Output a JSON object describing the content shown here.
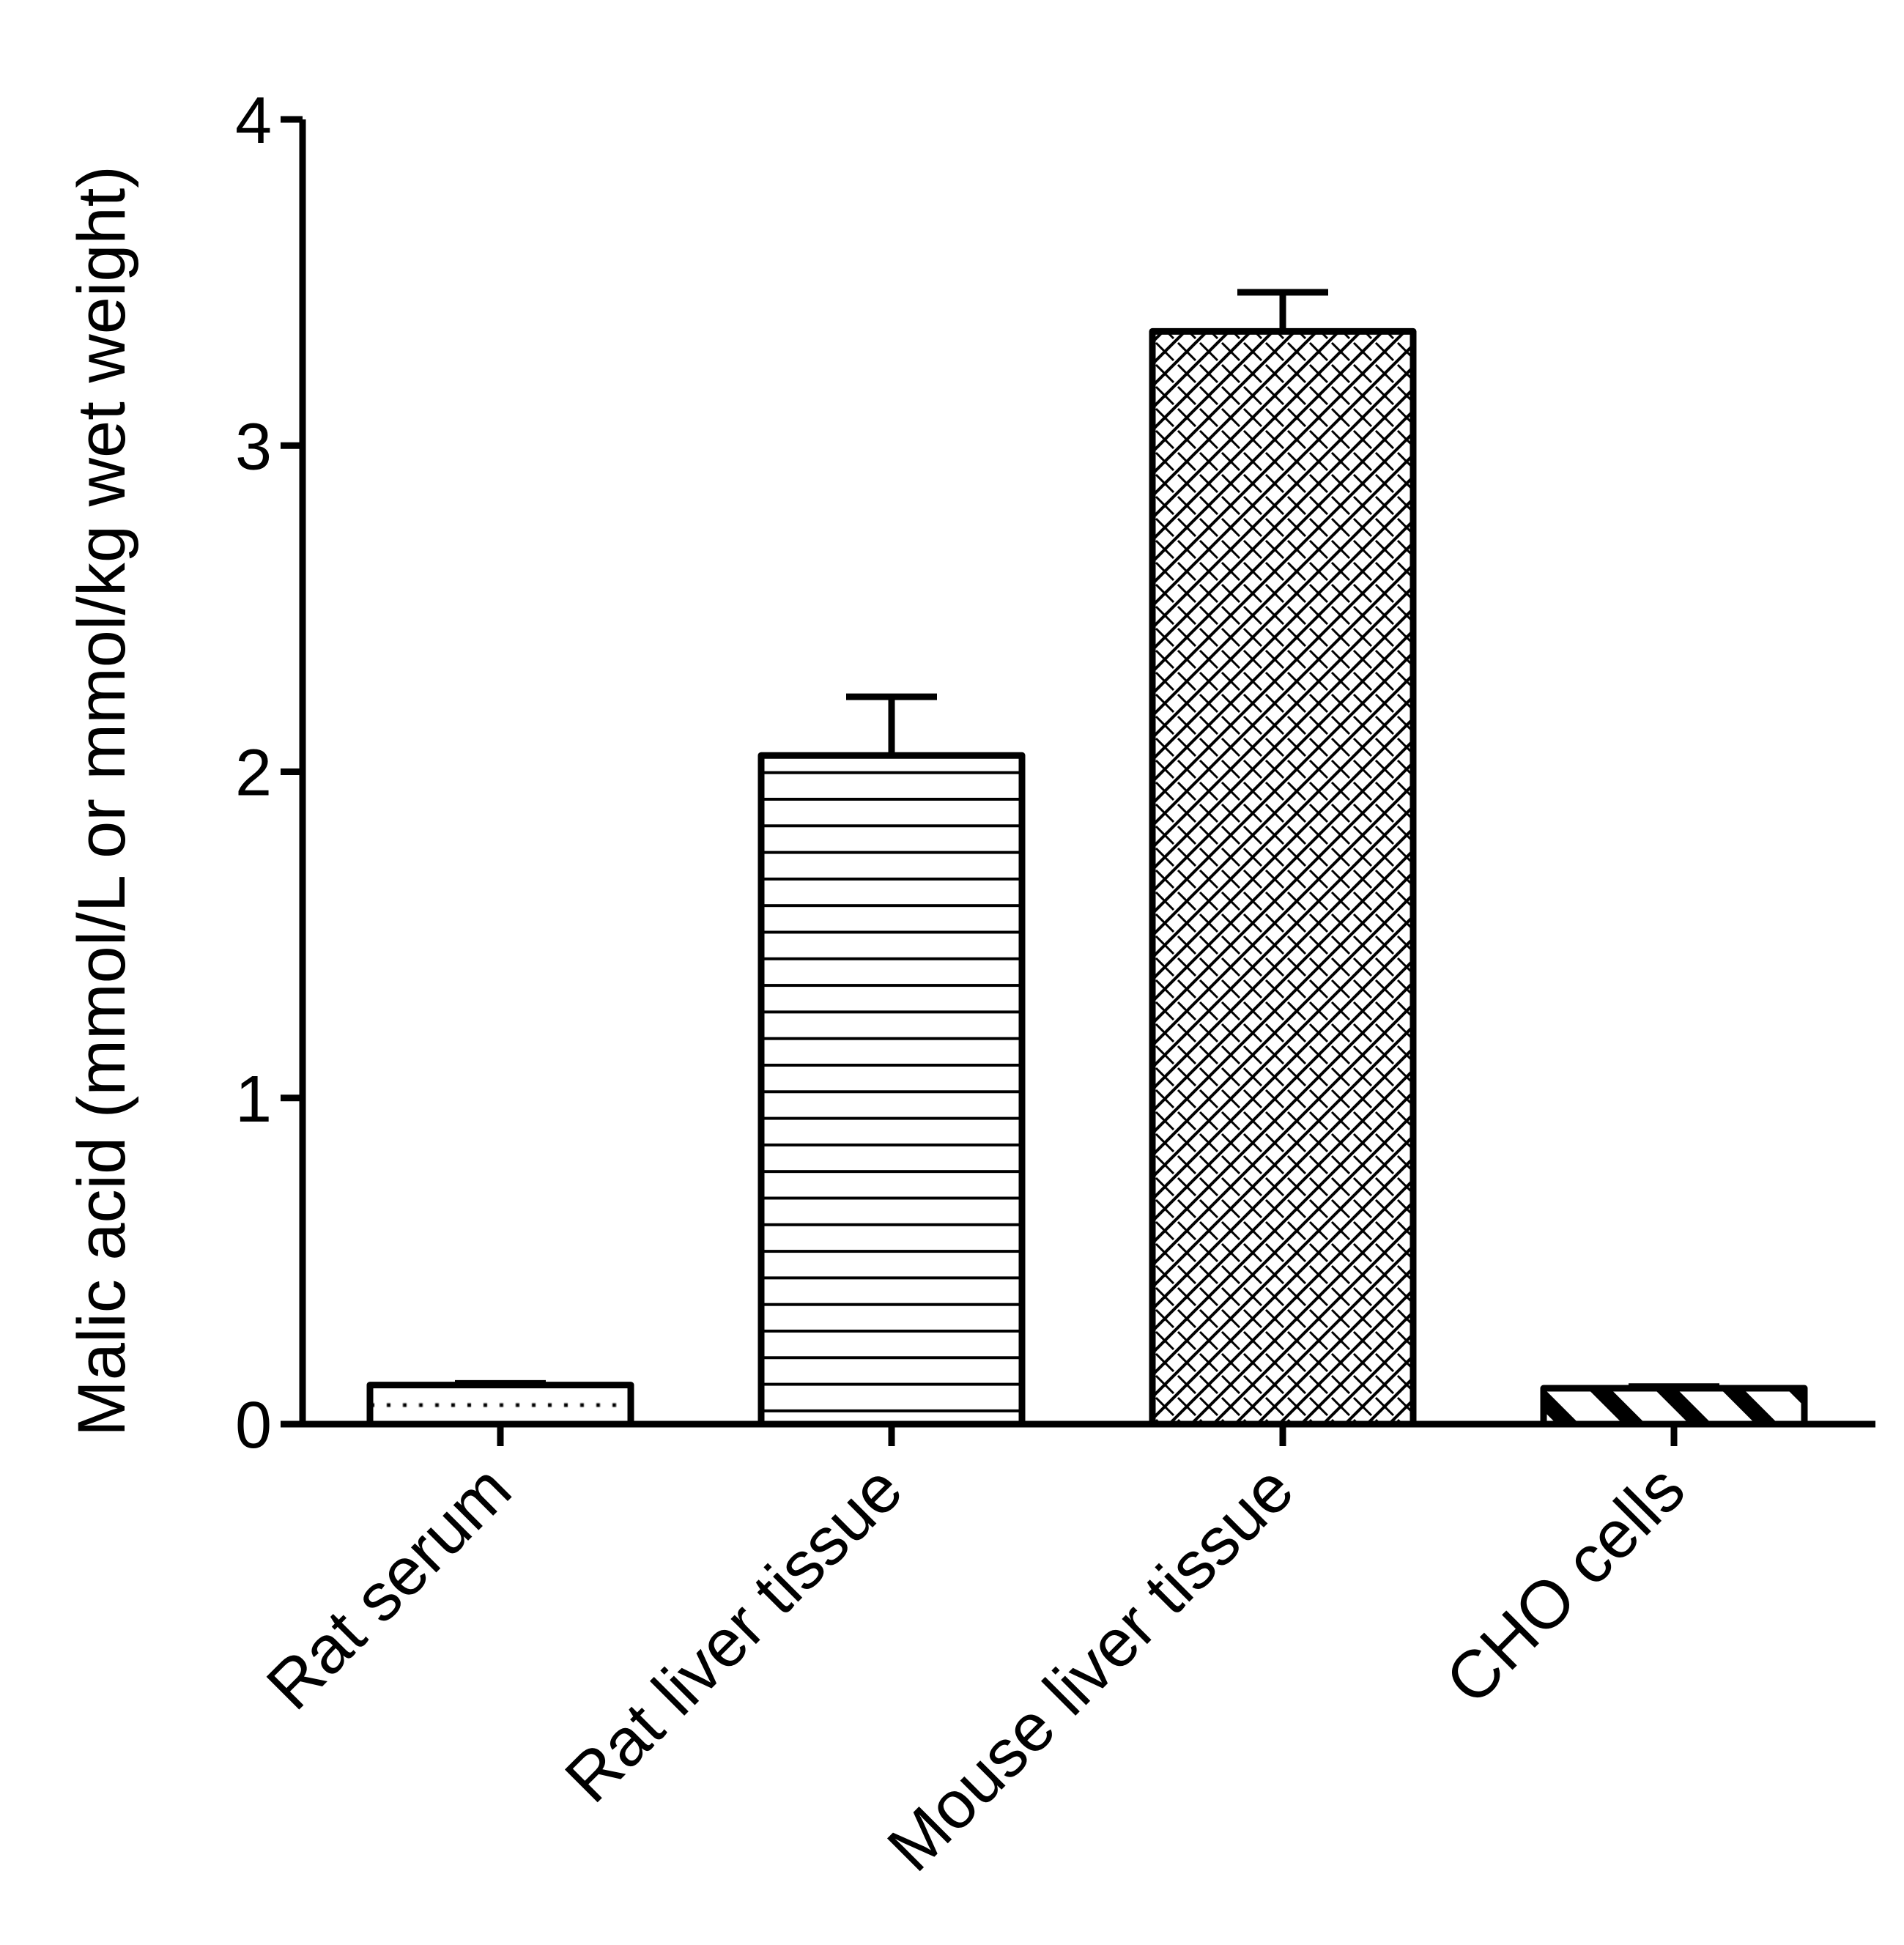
{
  "chart_data": {
    "type": "bar",
    "title": "",
    "xlabel": "",
    "ylabel": "Malic acid (mmol/L or mmol/kg wet weight)",
    "ylim": [
      0,
      4
    ],
    "yticks": [
      "0",
      "1",
      "2",
      "3",
      "4"
    ],
    "grid": false,
    "legend": "none",
    "categories": [
      "Rat serum",
      "Rat liver tissue",
      "Mouse liver tissue",
      "CHO cells"
    ],
    "values": [
      0.12,
      2.05,
      3.35,
      0.11
    ],
    "errors": [
      0.005,
      0.18,
      0.12,
      0.005
    ],
    "error_bars": "upper",
    "fill_patterns": [
      "dotted",
      "horizontal-lines",
      "crosshatch",
      "wide-diagonal"
    ],
    "colors": {
      "stroke": "#000000",
      "background": "#ffffff"
    }
  }
}
